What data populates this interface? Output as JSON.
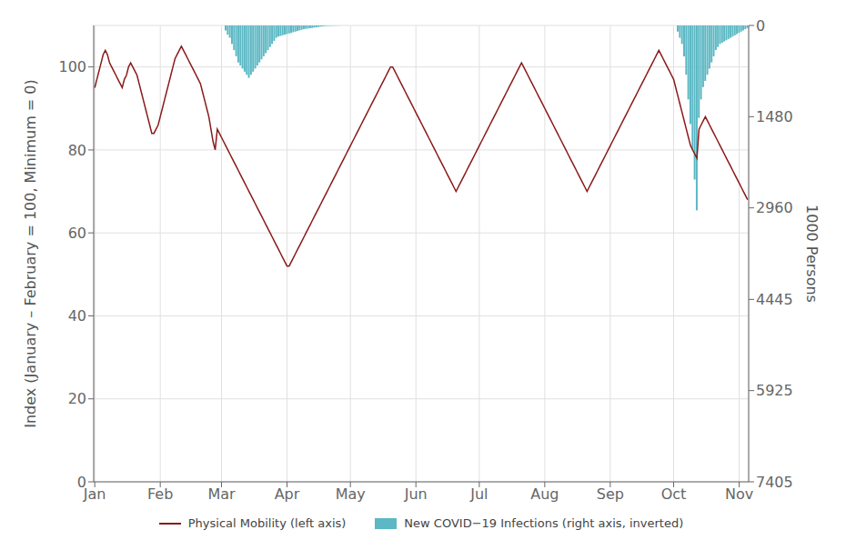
{
  "chart_data": {
    "type": "line",
    "ylabel": "Index (January – February = 100, Minimum = 0)",
    "y2label": "1000 Persons",
    "ylim": [
      0,
      110
    ],
    "yticks": [
      0,
      20,
      40,
      60,
      80,
      100
    ],
    "y2lim": [
      7405,
      0
    ],
    "y2ticks": [
      0,
      1480,
      2960,
      4445,
      5925,
      7405
    ],
    "grid": true,
    "legend": "bottom",
    "categories": [
      "Jan",
      null,
      null,
      null,
      null,
      null,
      null,
      null,
      null,
      null,
      null,
      null,
      null,
      null,
      null,
      null,
      null,
      null,
      null,
      null,
      null,
      null,
      null,
      null,
      null,
      null,
      null,
      null,
      null,
      null,
      null,
      "Feb",
      null,
      null,
      null,
      null,
      null,
      null,
      null,
      null,
      null,
      null,
      null,
      null,
      null,
      null,
      null,
      null,
      null,
      null,
      null,
      null,
      null,
      null,
      null,
      null,
      null,
      null,
      null,
      null,
      "Mar",
      null,
      null,
      null,
      null,
      null,
      null,
      null,
      null,
      null,
      null,
      null,
      null,
      null,
      null,
      null,
      null,
      null,
      null,
      null,
      null,
      null,
      null,
      null,
      null,
      null,
      null,
      null,
      null,
      null,
      null,
      "Apr",
      null,
      null,
      null,
      null,
      null,
      null,
      null,
      null,
      null,
      null,
      null,
      null,
      null,
      null,
      null,
      null,
      null,
      null,
      null,
      null,
      null,
      null,
      null,
      null,
      null,
      null,
      null,
      null,
      null,
      "May",
      null,
      null,
      null,
      null,
      null,
      null,
      null,
      null,
      null,
      null,
      null,
      null,
      null,
      null,
      null,
      null,
      null,
      null,
      null,
      null,
      null,
      null,
      null,
      null,
      null,
      null,
      null,
      null,
      null,
      null,
      "Jun",
      null,
      null,
      null,
      null,
      null,
      null,
      null,
      null,
      null,
      null,
      null,
      null,
      null,
      null,
      null,
      null,
      null,
      null,
      null,
      null,
      null,
      null,
      null,
      null,
      null,
      null,
      null,
      null,
      null,
      "Jul",
      null,
      null,
      null,
      null,
      null,
      null,
      null,
      null,
      null,
      null,
      null,
      null,
      null,
      null,
      null,
      null,
      null,
      null,
      null,
      null,
      null,
      null,
      null,
      null,
      null,
      null,
      null,
      null,
      null,
      null,
      "Aug",
      null,
      null,
      null,
      null,
      null,
      null,
      null,
      null,
      null,
      null,
      null,
      null,
      null,
      null,
      null,
      null,
      null,
      null,
      null,
      null,
      null,
      null,
      null,
      null,
      null,
      null,
      null,
      null,
      null,
      null,
      "Sep",
      null,
      null,
      null,
      null,
      null,
      null,
      null,
      null,
      null,
      null,
      null,
      null,
      null,
      null,
      null,
      null,
      null,
      null,
      null,
      null,
      null,
      null,
      null,
      null,
      null,
      null,
      null,
      null,
      null,
      "Oct",
      null,
      null,
      null,
      null,
      null,
      null,
      null,
      null,
      null,
      null,
      null,
      null,
      null,
      null,
      null,
      null,
      null,
      null,
      null,
      null,
      null,
      null,
      null,
      null,
      null,
      null,
      null,
      null,
      null,
      null,
      "Nov",
      null,
      null,
      null,
      null
    ],
    "series": [
      {
        "name": "Physical Mobility (left axis)",
        "type": "line",
        "color": "#8b1a1a",
        "values": [
          95,
          97,
          99,
          101,
          103,
          104,
          103,
          101,
          100,
          99,
          98,
          97,
          96,
          95,
          97,
          98,
          100,
          101,
          100,
          99,
          98,
          96,
          94,
          92,
          90,
          88,
          86,
          84,
          84,
          85,
          86,
          88,
          90,
          92,
          94,
          96,
          98,
          100,
          102,
          103,
          104,
          105,
          104,
          103,
          102,
          101,
          100,
          99,
          98,
          97,
          96,
          94,
          92,
          90,
          88,
          85,
          82,
          80,
          85,
          84,
          83,
          82,
          81,
          80,
          79,
          78,
          77,
          76,
          75,
          74,
          73,
          72,
          71,
          70,
          69,
          68,
          67,
          66,
          65,
          64,
          63,
          62,
          61,
          60,
          59,
          58,
          57,
          56,
          55,
          54,
          53,
          52,
          52,
          53,
          54,
          55,
          56,
          57,
          58,
          59,
          60,
          61,
          62,
          63,
          64,
          65,
          66,
          67,
          68,
          69,
          70,
          71,
          72,
          73,
          74,
          75,
          76,
          77,
          78,
          79,
          80,
          81,
          82,
          83,
          84,
          85,
          86,
          87,
          88,
          89,
          90,
          91,
          92,
          93,
          94,
          95,
          96,
          97,
          98,
          99,
          100,
          100,
          99,
          98,
          97,
          96,
          95,
          94,
          93,
          92,
          91,
          90,
          89,
          88,
          87,
          86,
          85,
          84,
          83,
          82,
          81,
          80,
          79,
          78,
          77,
          76,
          75,
          74,
          73,
          72,
          71,
          70,
          71,
          72,
          73,
          74,
          75,
          76,
          77,
          78,
          79,
          80,
          81,
          82,
          83,
          84,
          85,
          86,
          87,
          88,
          89,
          90,
          91,
          92,
          93,
          94,
          95,
          96,
          97,
          98,
          99,
          100,
          101,
          100,
          99,
          98,
          97,
          96,
          95,
          94,
          93,
          92,
          91,
          90,
          89,
          88,
          87,
          86,
          85,
          84,
          83,
          82,
          81,
          80,
          79,
          78,
          77,
          76,
          75,
          74,
          73,
          72,
          71,
          70,
          71,
          72,
          73,
          74,
          75,
          76,
          77,
          78,
          79,
          80,
          81,
          82,
          83,
          84,
          85,
          86,
          87,
          88,
          89,
          90,
          91,
          92,
          93,
          94,
          95,
          96,
          97,
          98,
          99,
          100,
          101,
          102,
          103,
          104,
          103,
          102,
          101,
          100,
          99,
          98,
          97,
          95,
          93,
          91,
          89,
          87,
          85,
          83,
          81,
          80,
          79,
          78,
          85,
          86,
          87,
          88,
          87,
          86,
          85,
          84,
          83,
          82,
          81,
          80,
          79,
          78,
          77,
          76,
          75,
          74,
          73,
          72,
          71,
          70,
          69,
          68
        ]
      },
      {
        "name": "New COVID−19 Infections (right axis, inverted)",
        "type": "bar",
        "color": "#5bb8c4",
        "axis": "y2",
        "values": [
          0,
          0,
          0,
          0,
          0,
          0,
          0,
          0,
          0,
          0,
          0,
          0,
          0,
          0,
          0,
          0,
          0,
          0,
          0,
          0,
          0,
          0,
          0,
          0,
          0,
          0,
          0,
          0,
          0,
          0,
          0,
          0,
          0,
          0,
          0,
          0,
          0,
          0,
          0,
          0,
          0,
          0,
          0,
          0,
          0,
          0,
          0,
          0,
          0,
          0,
          0,
          0,
          0,
          0,
          0,
          0,
          0,
          0,
          0,
          0,
          0,
          0,
          80,
          150,
          200,
          300,
          400,
          500,
          600,
          650,
          700,
          750,
          800,
          850,
          800,
          750,
          700,
          650,
          600,
          550,
          500,
          450,
          400,
          350,
          300,
          250,
          200,
          180,
          170,
          160,
          150,
          140,
          130,
          120,
          110,
          100,
          90,
          80,
          70,
          60,
          55,
          50,
          45,
          40,
          35,
          30,
          25,
          20,
          15,
          10,
          8,
          6,
          5,
          4,
          3,
          2,
          1,
          0,
          0,
          0,
          0,
          0,
          0,
          0,
          0,
          0,
          0,
          0,
          0,
          0,
          0,
          0,
          0,
          0,
          0,
          0,
          0,
          0,
          0,
          0,
          0,
          0,
          0,
          0,
          0,
          0,
          0,
          0,
          0,
          0,
          0,
          0,
          0,
          0,
          0,
          0,
          0,
          0,
          0,
          0,
          0,
          0,
          0,
          0,
          0,
          0,
          0,
          0,
          0,
          0,
          0,
          0,
          0,
          0,
          0,
          0,
          0,
          0,
          0,
          0,
          0,
          0,
          0,
          0,
          0,
          0,
          0,
          0,
          0,
          0,
          0,
          0,
          0,
          0,
          0,
          0,
          0,
          0,
          0,
          0,
          0,
          0,
          0,
          0,
          0,
          0,
          0,
          0,
          0,
          0,
          0,
          0,
          0,
          0,
          0,
          0,
          0,
          0,
          0,
          0,
          0,
          0,
          0,
          0,
          0,
          0,
          0,
          0,
          0,
          0,
          0,
          0,
          0,
          0,
          0,
          0,
          0,
          0,
          0,
          0,
          0,
          0,
          0,
          0,
          0,
          0,
          0,
          0,
          0,
          0,
          0,
          0,
          0,
          0,
          0,
          0,
          0,
          0,
          0,
          0,
          0,
          0,
          0,
          0,
          0,
          0,
          0,
          0,
          0,
          0,
          0,
          0,
          0,
          0,
          0,
          0,
          100,
          200,
          300,
          500,
          800,
          1200,
          1600,
          2000,
          2500,
          3000,
          1500,
          1200,
          1000,
          900,
          800,
          700,
          600,
          500,
          400,
          350,
          300,
          280,
          260,
          240,
          220,
          200,
          180,
          160,
          140,
          120,
          100,
          80,
          60,
          40
        ]
      }
    ]
  }
}
